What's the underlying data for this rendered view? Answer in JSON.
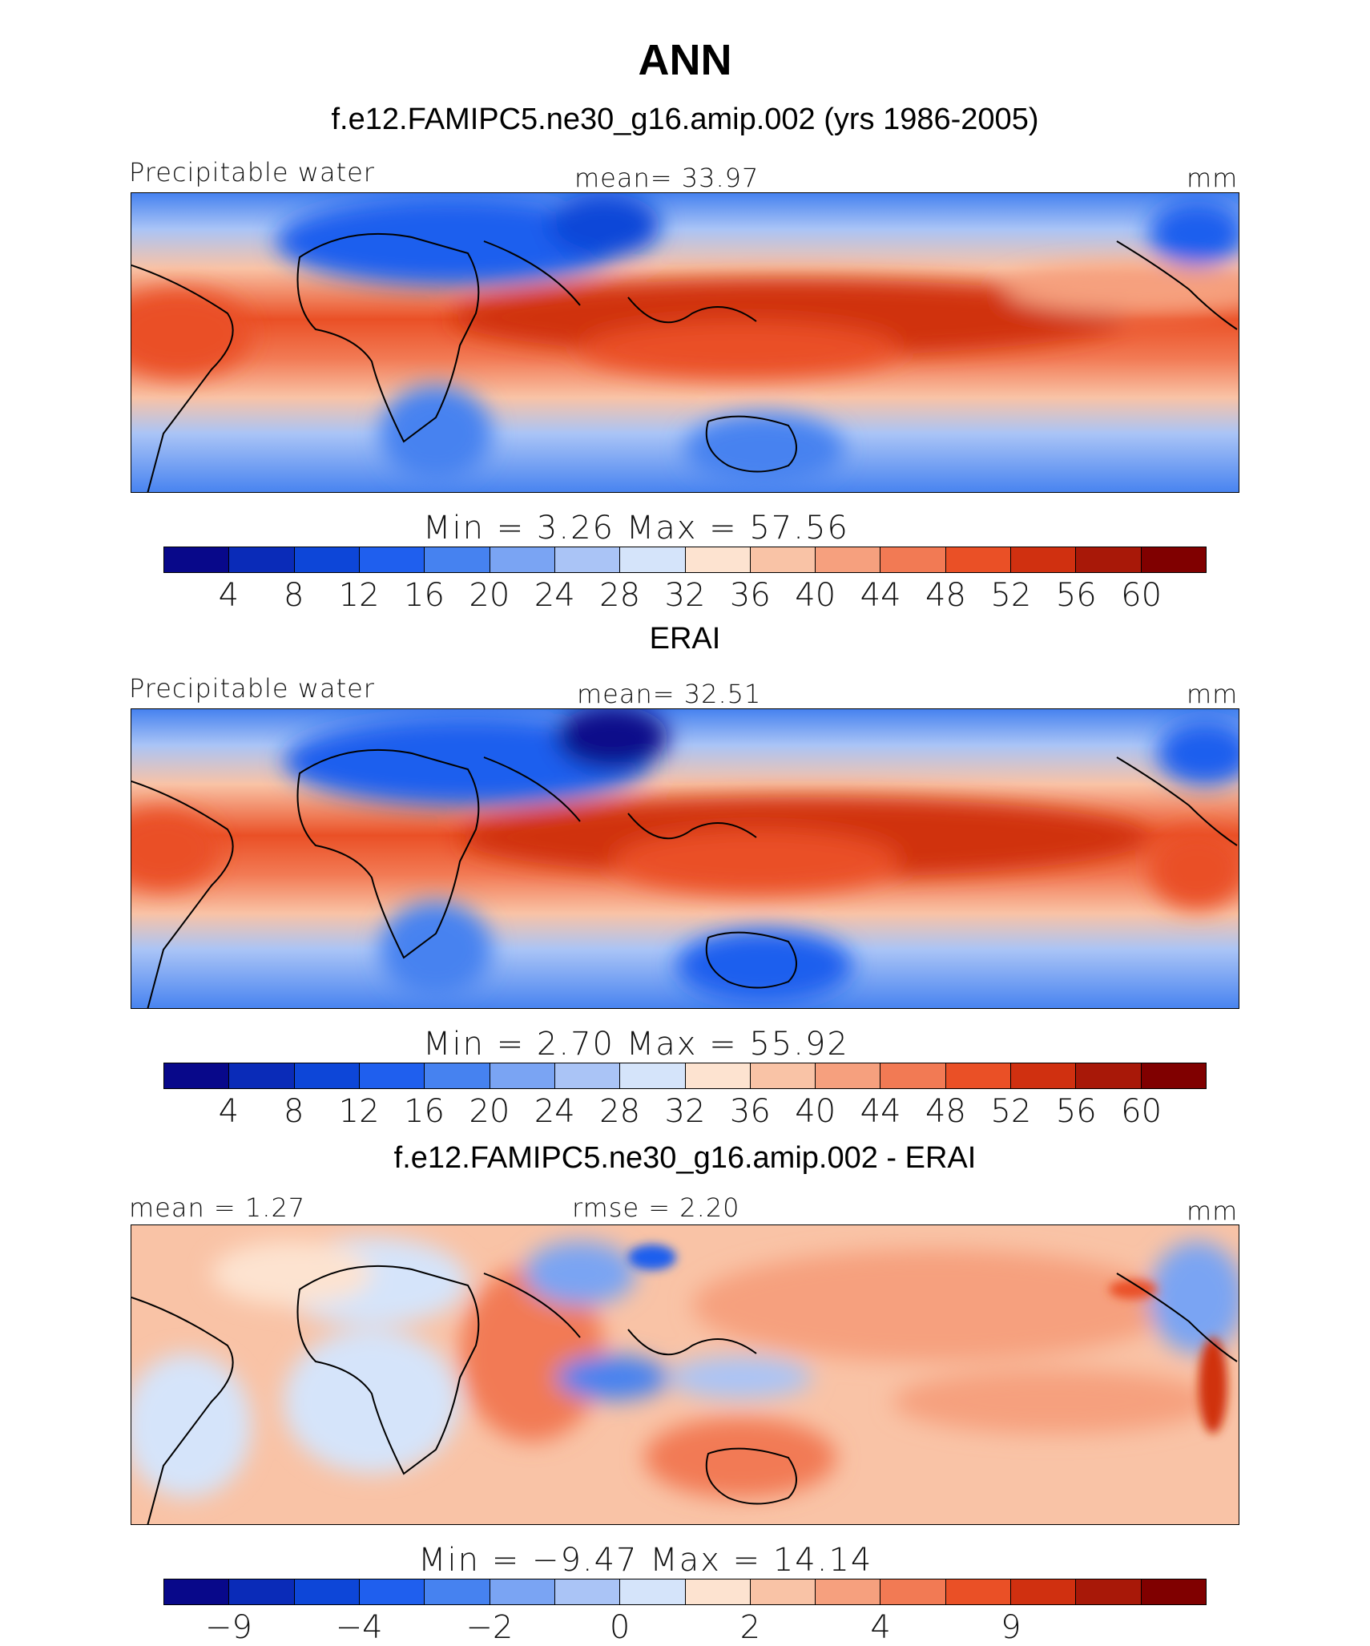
{
  "title": "ANN",
  "panels": [
    {
      "id": "model",
      "heading": "f.e12.FAMIPC5.ne30_g16.amip.002 (yrs 1986-2005)",
      "left_label": "Precipitable water",
      "center_label": "mean=   33.97",
      "units": "mm",
      "stats": "Min  =     3.26  Max  =    57.56",
      "colorbar_ticks": [
        "4",
        "8",
        "12",
        "16",
        "20",
        "24",
        "28",
        "32",
        "36",
        "40",
        "44",
        "48",
        "52",
        "56",
        "60"
      ],
      "colorbar_colors": [
        "#08088a",
        "#0a2bb8",
        "#0d46d8",
        "#1f5fee",
        "#4682f0",
        "#7aa4f3",
        "#aac4f6",
        "#d5e4fa",
        "#fde3d0",
        "#f9c3a6",
        "#f6a07e",
        "#f27a54",
        "#ea5026",
        "#d03010",
        "#a81808",
        "#800000"
      ]
    },
    {
      "id": "obs",
      "heading": "ERAI",
      "left_label": "Precipitable water",
      "center_label": "mean=   32.51",
      "units": "mm",
      "stats": "Min  =     2.70  Max  =    55.92",
      "colorbar_ticks": [
        "4",
        "8",
        "12",
        "16",
        "20",
        "24",
        "28",
        "32",
        "36",
        "40",
        "44",
        "48",
        "52",
        "56",
        "60"
      ],
      "colorbar_colors": [
        "#08088a",
        "#0a2bb8",
        "#0d46d8",
        "#1f5fee",
        "#4682f0",
        "#7aa4f3",
        "#aac4f6",
        "#d5e4fa",
        "#fde3d0",
        "#f9c3a6",
        "#f6a07e",
        "#f27a54",
        "#ea5026",
        "#d03010",
        "#a81808",
        "#800000"
      ]
    },
    {
      "id": "diff",
      "heading": "f.e12.FAMIPC5.ne30_g16.amip.002 - ERAI",
      "left_label": "mean =    1.27",
      "center_label": "rmse =    2.20",
      "units": "mm",
      "stats": "Min  =   −9.47  Max  =    14.14",
      "colorbar_ticks": [
        "−9",
        "−4",
        "−2",
        "0",
        "2",
        "4",
        "9"
      ],
      "colorbar_colors": [
        "#08088a",
        "#0a2bb8",
        "#0d46d8",
        "#1f5fee",
        "#4682f0",
        "#7aa4f3",
        "#aac4f6",
        "#d5e4fa",
        "#fde3d0",
        "#f9c3a6",
        "#f6a07e",
        "#f27a54",
        "#ea5026",
        "#d03010",
        "#a81808",
        "#800000"
      ]
    }
  ]
}
